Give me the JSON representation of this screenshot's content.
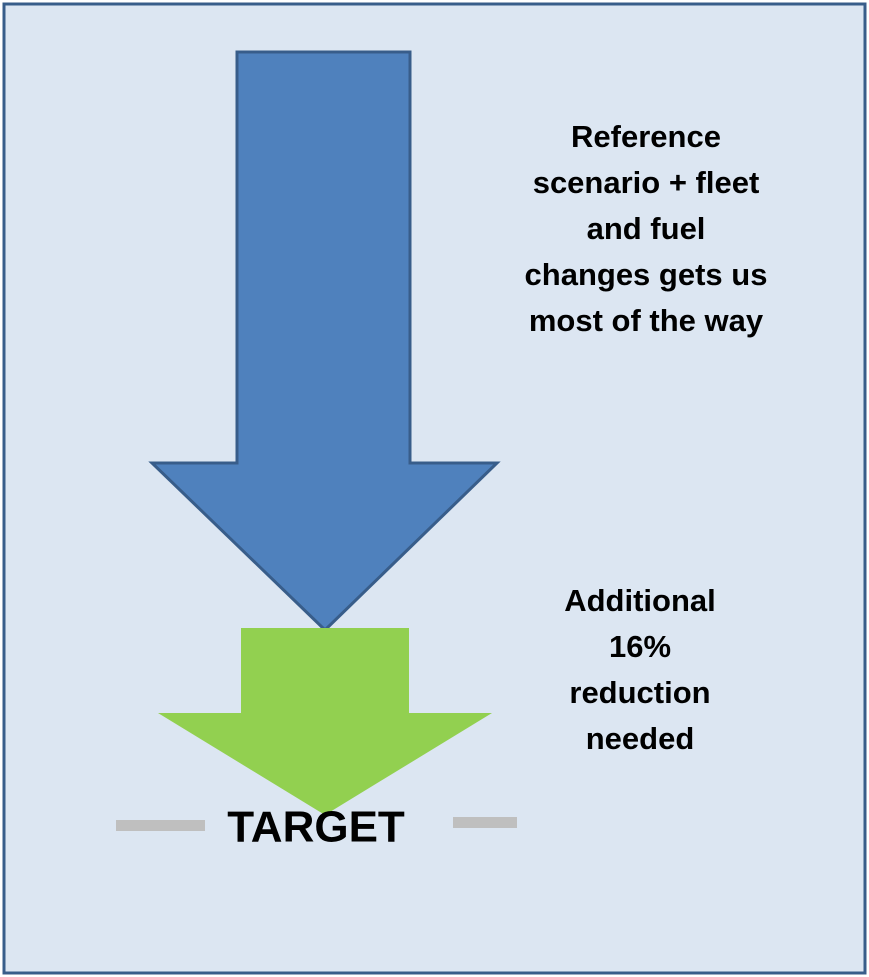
{
  "reference_note": {
    "lines": [
      "Reference",
      "scenario + fleet",
      "and fuel",
      "changes gets us",
      "most of the way"
    ]
  },
  "additional_note": {
    "lines": [
      "Additional",
      "16%",
      "reduction",
      "needed"
    ]
  },
  "target_label": "TARGET"
}
